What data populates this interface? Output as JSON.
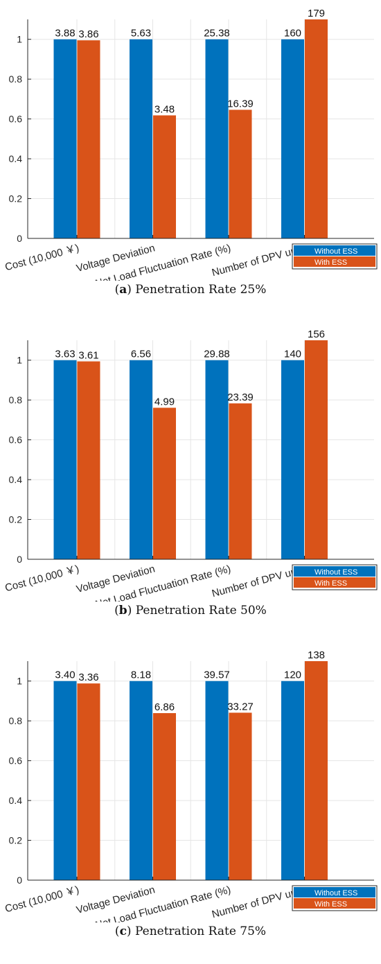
{
  "colors": {
    "without": "#0072BD",
    "with": "#D95319",
    "grid": "#e5e5e5",
    "axis": "#262626"
  },
  "chart_data": [
    {
      "type": "bar",
      "caption_letter": "a",
      "caption_text": "Penetration Rate 25%",
      "categories": [
        "Cost (10,000 ￥)",
        "Voltage Deviation",
        "Net Load Fluctuation Rate (%)",
        "Number of DPV units"
      ],
      "series": [
        {
          "name": "Without ESS",
          "values": [
            1,
            1,
            1,
            1
          ],
          "labels": [
            "3.88",
            "5.63",
            "25.38",
            "160"
          ]
        },
        {
          "name": "With ESS",
          "values": [
            0.995,
            0.618,
            0.646,
            1.1
          ],
          "labels": [
            "3.86",
            "3.48",
            "16.39",
            "179"
          ]
        }
      ],
      "yticks": [
        "0",
        "0.2",
        "0.4",
        "0.6",
        "0.8",
        "1"
      ],
      "ylim": [
        0,
        1.1
      ],
      "grid": true,
      "legend": "bottom-right"
    },
    {
      "type": "bar",
      "caption_letter": "b",
      "caption_text": "Penetration Rate 50%",
      "categories": [
        "Cost (10,000 ￥)",
        "Voltage Deviation",
        "Net Load Fluctuation Rate (%)",
        "Number of DPV units"
      ],
      "series": [
        {
          "name": "Without ESS",
          "values": [
            1,
            1,
            1,
            1
          ],
          "labels": [
            "3.63",
            "6.56",
            "29.88",
            "140"
          ]
        },
        {
          "name": "With ESS",
          "values": [
            0.994,
            0.761,
            0.783,
            1.1
          ],
          "labels": [
            "3.61",
            "4.99",
            "23.39",
            "156"
          ]
        }
      ],
      "yticks": [
        "0",
        "0.2",
        "0.4",
        "0.6",
        "0.8",
        "1"
      ],
      "ylim": [
        0,
        1.1
      ],
      "grid": true,
      "legend": "bottom-right"
    },
    {
      "type": "bar",
      "caption_letter": "c",
      "caption_text": "Penetration Rate 75%",
      "categories": [
        "Cost (10,000 ￥)",
        "Voltage Deviation",
        "Net Load Fluctuation Rate (%)",
        "Number of DPV units"
      ],
      "series": [
        {
          "name": "Without ESS",
          "values": [
            1,
            1,
            1,
            1
          ],
          "labels": [
            "3.40",
            "8.18",
            "39.57",
            "120"
          ]
        },
        {
          "name": "With ESS",
          "values": [
            0.988,
            0.839,
            0.841,
            1.1
          ],
          "labels": [
            "3.36",
            "6.86",
            "33.27",
            "138"
          ]
        }
      ],
      "yticks": [
        "0",
        "0.2",
        "0.4",
        "0.6",
        "0.8",
        "1"
      ],
      "ylim": [
        0,
        1.1
      ],
      "grid": true,
      "legend": "bottom-right"
    }
  ]
}
